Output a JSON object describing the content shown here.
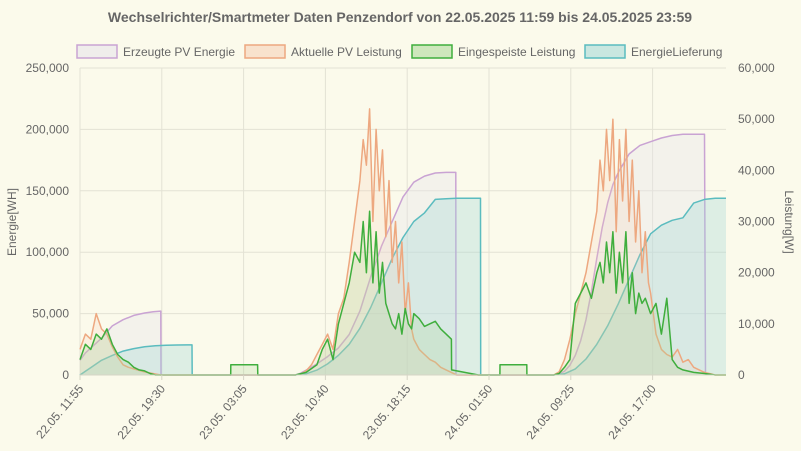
{
  "chart_data": {
    "type": "line",
    "title": "Wechselrichter/Smartmeter Daten Penzendorf von 22.05.2025 11:59 bis 24.05.2025 23:59",
    "x_ticks": [
      "22.05. 11:55",
      "22.05. 19:30",
      "23.05. 03:05",
      "23.05. 10:40",
      "23.05. 18:15",
      "24.05. 01:50",
      "24.05. 09:25",
      "24.05. 17:00"
    ],
    "x_range_hours": [
      0,
      60
    ],
    "left_axis": {
      "label": "Energie[WH]",
      "ticks": [
        "0",
        "50,000",
        "100,000",
        "150,000",
        "200,000",
        "250,000"
      ],
      "ylim": [
        0,
        250000
      ]
    },
    "right_axis": {
      "label": "Leistung[W]",
      "ticks": [
        "0",
        "10,000",
        "20,000",
        "30,000",
        "40,000",
        "50,000",
        "60,000"
      ],
      "ylim": [
        0,
        60000
      ]
    },
    "grid": true,
    "legend_position": "top",
    "series": [
      {
        "name": "Erzeugte PV Energie",
        "axis": "left",
        "color": "#c9a3d3",
        "fill": "rgba(230,225,235,0.35)",
        "x_hours": [
          0,
          0.5,
          1,
          1.5,
          2,
          2.5,
          3,
          4,
          5,
          6,
          6.8,
          7.5,
          7.52,
          20,
          20.5,
          21,
          22,
          23,
          24,
          25,
          26,
          27,
          28,
          29,
          30,
          31,
          32,
          33,
          34,
          34.9,
          34.92,
          44,
          44.5,
          45,
          45.5,
          46,
          46.5,
          47,
          47.5,
          48,
          48.5,
          49,
          49.5,
          50,
          51,
          52,
          53,
          54,
          55,
          56,
          57,
          58,
          58.1
        ],
        "values": [
          12000,
          18000,
          22000,
          26000,
          30000,
          35000,
          40000,
          45000,
          48500,
          50500,
          51500,
          52000,
          0,
          0,
          1500,
          4000,
          9000,
          15000,
          22000,
          33000,
          52000,
          80000,
          105000,
          125000,
          145000,
          157000,
          162000,
          164500,
          165000,
          165000,
          0,
          0,
          1000,
          3000,
          8000,
          16000,
          28000,
          45000,
          68000,
          95000,
          120000,
          140000,
          155000,
          165000,
          180000,
          187000,
          190000,
          193000,
          195000,
          196000,
          196000,
          196000,
          0
        ]
      },
      {
        "name": "EnergieLieferung",
        "axis": "left",
        "color": "#5bbcbf",
        "fill": "rgba(160,215,215,0.32)",
        "x_hours": [
          0,
          0.5,
          1,
          2,
          3,
          4,
          5,
          6,
          7,
          8,
          9,
          10,
          10.4,
          10.42,
          20,
          21,
          22,
          23,
          24,
          25,
          26,
          27,
          28,
          29,
          30,
          31,
          32,
          33,
          34,
          35,
          36,
          37.2,
          37.22,
          44,
          45,
          46,
          47,
          48,
          49,
          50,
          51,
          52,
          53,
          54,
          55,
          56,
          57,
          58,
          59,
          60
        ],
        "values": [
          0,
          3000,
          6000,
          12000,
          16000,
          19500,
          21500,
          23000,
          23800,
          24200,
          24400,
          24500,
          24500,
          0,
          0,
          1000,
          4000,
          9000,
          16000,
          25000,
          38000,
          55000,
          75000,
          95000,
          112000,
          125000,
          132000,
          143000,
          143500,
          144000,
          144000,
          144000,
          0,
          0,
          1000,
          5000,
          13000,
          25000,
          40000,
          58000,
          78000,
          98000,
          115000,
          122000,
          126000,
          128000,
          140000,
          143000,
          144000,
          144000
        ]
      },
      {
        "name": "Aktuelle PV Leistung",
        "axis": "right",
        "color": "#eda880",
        "fill": "rgba(245,205,180,0.22)",
        "x_hours": [
          0,
          0.5,
          1,
          1.5,
          2,
          2.5,
          3,
          3.5,
          4,
          4.5,
          5,
          5.5,
          6,
          6.5,
          7,
          7.5,
          20,
          20.5,
          21,
          21.5,
          22,
          22.5,
          23,
          23.5,
          24,
          24.5,
          25,
          25.5,
          26,
          26.3,
          26.6,
          26.9,
          27.2,
          27.5,
          27.8,
          28.1,
          28.4,
          28.7,
          29,
          29.3,
          29.6,
          29.9,
          30.2,
          30.5,
          30.8,
          31,
          31.5,
          32,
          32.5,
          33,
          33.5,
          34,
          34.5,
          35,
          44,
          44.5,
          45,
          45.5,
          46,
          46.5,
          47,
          47.5,
          48,
          48.3,
          48.6,
          48.9,
          49.2,
          49.5,
          49.8,
          50.1,
          50.4,
          50.7,
          51,
          51.3,
          51.6,
          51.9,
          52.2,
          52.5,
          52.8,
          53,
          53.5,
          54,
          54.5,
          55,
          55.5,
          56,
          56.5,
          57,
          58,
          59,
          60
        ],
        "values": [
          5000,
          8000,
          7000,
          12000,
          9000,
          8000,
          5500,
          3500,
          2000,
          1500,
          1200,
          900,
          600,
          400,
          200,
          0,
          0,
          200,
          800,
          2000,
          4000,
          6000,
          8000,
          5000,
          12000,
          15000,
          22000,
          30000,
          38000,
          46000,
          41000,
          52000,
          30000,
          48000,
          36000,
          44000,
          27000,
          38000,
          22000,
          30000,
          18000,
          26000,
          12000,
          18000,
          9000,
          7000,
          5000,
          4000,
          3000,
          2500,
          1500,
          1000,
          500,
          0,
          0,
          600,
          3000,
          7000,
          12000,
          16000,
          20000,
          26000,
          32000,
          42000,
          36000,
          48000,
          38000,
          50000,
          28000,
          46000,
          34000,
          48000,
          30000,
          42000,
          26000,
          36000,
          20000,
          28000,
          18000,
          16000,
          8000,
          5000,
          4000,
          3500,
          5000,
          2500,
          3000,
          1500,
          500,
          0,
          0
        ]
      },
      {
        "name": "Eingespeiste Leistung",
        "axis": "right",
        "color": "#3fae3d",
        "fill": "rgba(170,215,150,0.25)",
        "x_hours": [
          0,
          0.5,
          1,
          1.5,
          2,
          2.5,
          3,
          3.5,
          4,
          4.5,
          5,
          5.5,
          6,
          6.5,
          7,
          7.5,
          8,
          8.5,
          9,
          10,
          11,
          12,
          13,
          14,
          14.01,
          16.5,
          16.51,
          17,
          20,
          21,
          22,
          22.5,
          23,
          23.5,
          24,
          24.5,
          25,
          25.5,
          26,
          26.3,
          26.6,
          26.9,
          27.2,
          27.5,
          27.8,
          28.1,
          28.4,
          28.7,
          29,
          29.3,
          29.6,
          29.9,
          30.2,
          30.5,
          30.8,
          31,
          31.5,
          32,
          32.5,
          33,
          33.5,
          34,
          34.5,
          34.51,
          37,
          39,
          39.01,
          41.5,
          41.51,
          42,
          44,
          44.5,
          45,
          45.5,
          46,
          46.5,
          47,
          47.5,
          48,
          48.3,
          48.6,
          48.9,
          49.2,
          49.5,
          49.8,
          50.1,
          50.4,
          50.7,
          51,
          51.3,
          51.6,
          51.9,
          52.2,
          52.5,
          53,
          53.5,
          54,
          54.5,
          55,
          55.5,
          56,
          57,
          58,
          59,
          60
        ],
        "values": [
          3000,
          6000,
          5000,
          8000,
          7000,
          9000,
          6000,
          4000,
          3000,
          2500,
          1500,
          1000,
          800,
          300,
          0,
          0,
          0,
          0,
          0,
          0,
          0,
          0,
          0,
          0,
          2000,
          2000,
          0,
          0,
          0,
          500,
          2000,
          5000,
          7000,
          3000,
          10000,
          14000,
          18000,
          24000,
          22000,
          30000,
          20000,
          32000,
          18000,
          28000,
          16000,
          22000,
          14000,
          12000,
          10000,
          9000,
          12000,
          8000,
          13000,
          10000,
          9000,
          12000,
          11000,
          9500,
          10000,
          10500,
          9000,
          8000,
          7000,
          1000,
          0,
          0,
          2000,
          2000,
          0,
          0,
          0,
          300,
          1500,
          3000,
          14000,
          16000,
          18000,
          15000,
          20000,
          22000,
          18000,
          26000,
          20000,
          28000,
          16000,
          24000,
          18000,
          28000,
          14000,
          20000,
          12000,
          16000,
          14000,
          15000,
          12000,
          14000,
          8000,
          15000,
          3000,
          1500,
          1000,
          500,
          300,
          0,
          0
        ]
      }
    ]
  }
}
